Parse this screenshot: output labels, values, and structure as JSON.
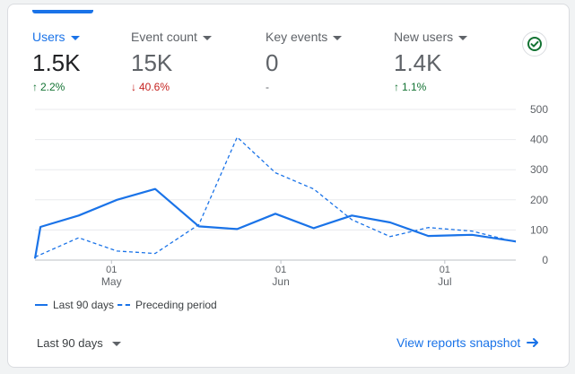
{
  "metrics": [
    {
      "label": "Users",
      "value": "1.5K",
      "delta": "2.2%",
      "trend": "up"
    },
    {
      "label": "Event count",
      "value": "15K",
      "delta": "40.6%",
      "trend": "down"
    },
    {
      "label": "Key events",
      "value": "0",
      "delta": "-",
      "trend": "flat"
    },
    {
      "label": "New users",
      "value": "1.4K",
      "delta": "1.1%",
      "trend": "up"
    }
  ],
  "colors": {
    "accent": "#1a73e8",
    "up": "#137333",
    "down": "#c5221f",
    "grid": "#e8eaed"
  },
  "chart_data": {
    "type": "line",
    "title": "",
    "xlabel": "",
    "ylabel": "",
    "ylim": [
      0,
      500
    ],
    "y_ticks": [
      "500",
      "400",
      "300",
      "200",
      "100",
      "0"
    ],
    "x_ticks": [
      {
        "day": 1,
        "month": "May",
        "pos": 14
      },
      {
        "day": 1,
        "month": "Jun",
        "pos": 45
      },
      {
        "day": 1,
        "month": "Jul",
        "pos": 75
      }
    ],
    "x_range": [
      0,
      88
    ],
    "series": [
      {
        "name": "Last 90 days",
        "style": "solid",
        "x": [
          0,
          1,
          8,
          15,
          22,
          30,
          37,
          44,
          51,
          58,
          65,
          72,
          80,
          88
        ],
        "y": [
          5,
          110,
          148,
          200,
          236,
          112,
          103,
          154,
          106,
          148,
          125,
          80,
          84,
          62
        ]
      },
      {
        "name": "Preceding period",
        "style": "dashed",
        "x": [
          0,
          8,
          15,
          22,
          30,
          37,
          44,
          51,
          58,
          65,
          72,
          80,
          88
        ],
        "y": [
          10,
          74,
          30,
          22,
          118,
          408,
          290,
          236,
          134,
          78,
          108,
          96,
          60
        ]
      }
    ]
  },
  "legend": {
    "current": "Last 90 days",
    "previous": "Preceding period"
  },
  "footer": {
    "range_label": "Last 90 days",
    "link_label": "View reports snapshot"
  }
}
